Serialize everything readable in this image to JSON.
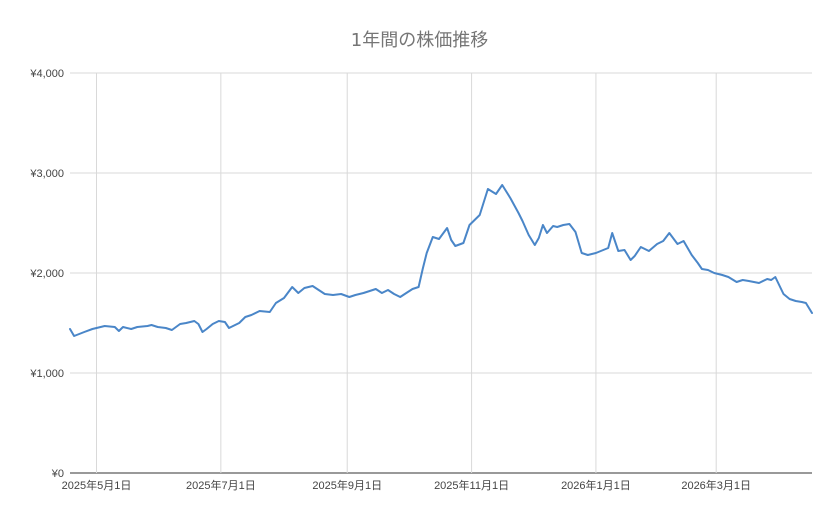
{
  "chart_data": {
    "type": "line",
    "title": "1年間の株価推移",
    "xlabel": "",
    "ylabel": "",
    "ylim": [
      0,
      4000
    ],
    "y_ticks": [
      0,
      1000,
      2000,
      3000,
      4000
    ],
    "y_tick_labels": [
      "¥0",
      "¥1,000",
      "¥2,000",
      "¥3,000",
      "¥4,000"
    ],
    "x_range": [
      "2025-04-18",
      "2026-04-17"
    ],
    "x_ticks": [
      "2025-05-01",
      "2025-07-01",
      "2025-09-01",
      "2025-11-01",
      "2026-01-01",
      "2026-03-01"
    ],
    "x_tick_labels": [
      "2025年5月1日",
      "2025年7月1日",
      "2025年9月1日",
      "2025年11月1日",
      "2026年1月1日",
      "2026年3月1日"
    ],
    "grid": true,
    "series_color": "#4a86c8",
    "x": [
      "2025-04-18",
      "2025-04-20",
      "2025-04-25",
      "2025-04-29",
      "2025-05-05",
      "2025-05-10",
      "2025-05-12",
      "2025-05-14",
      "2025-05-18",
      "2025-05-21",
      "2025-05-26",
      "2025-05-28",
      "2025-05-31",
      "2025-06-04",
      "2025-06-07",
      "2025-06-11",
      "2025-06-14",
      "2025-06-18",
      "2025-06-20",
      "2025-06-22",
      "2025-06-24",
      "2025-06-27",
      "2025-06-30",
      "2025-07-03",
      "2025-07-05",
      "2025-07-08",
      "2025-07-10",
      "2025-07-13",
      "2025-07-16",
      "2025-07-20",
      "2025-07-25",
      "2025-07-28",
      "2025-08-01",
      "2025-08-05",
      "2025-08-08",
      "2025-08-11",
      "2025-08-15",
      "2025-08-18",
      "2025-08-21",
      "2025-08-25",
      "2025-08-29",
      "2025-09-02",
      "2025-09-05",
      "2025-09-09",
      "2025-09-12",
      "2025-09-15",
      "2025-09-18",
      "2025-09-21",
      "2025-09-24",
      "2025-09-27",
      "2025-09-30",
      "2025-10-03",
      "2025-10-06",
      "2025-10-08",
      "2025-10-10",
      "2025-10-13",
      "2025-10-16",
      "2025-10-20",
      "2025-10-22",
      "2025-10-24",
      "2025-10-28",
      "2025-10-31",
      "2025-11-05",
      "2025-11-09",
      "2025-11-13",
      "2025-11-16",
      "2025-11-20",
      "2025-11-24",
      "2025-11-26",
      "2025-11-29",
      "2025-12-02",
      "2025-12-04",
      "2025-12-06",
      "2025-12-08",
      "2025-12-11",
      "2025-12-13",
      "2025-12-16",
      "2025-12-19",
      "2025-12-22",
      "2025-12-25",
      "2025-12-28",
      "2026-01-01",
      "2026-01-07",
      "2026-01-09",
      "2026-01-12",
      "2026-01-15",
      "2026-01-18",
      "2026-01-20",
      "2026-01-23",
      "2026-01-27",
      "2026-01-31",
      "2026-02-03",
      "2026-02-06",
      "2026-02-10",
      "2026-02-13",
      "2026-02-17",
      "2026-02-20",
      "2026-02-22",
      "2026-02-25",
      "2026-02-28",
      "2026-03-04",
      "2026-03-07",
      "2026-03-11",
      "2026-03-14",
      "2026-03-17",
      "2026-03-22",
      "2026-03-26",
      "2026-03-28",
      "2026-03-30",
      "2026-04-03",
      "2026-04-06",
      "2026-04-09",
      "2026-04-12",
      "2026-04-14",
      "2026-04-17"
    ],
    "values": [
      1440,
      1370,
      1410,
      1440,
      1470,
      1460,
      1420,
      1460,
      1440,
      1460,
      1470,
      1480,
      1460,
      1450,
      1430,
      1490,
      1500,
      1520,
      1490,
      1410,
      1440,
      1490,
      1520,
      1510,
      1450,
      1480,
      1500,
      1560,
      1580,
      1620,
      1610,
      1700,
      1750,
      1860,
      1800,
      1850,
      1870,
      1830,
      1790,
      1780,
      1790,
      1760,
      1780,
      1800,
      1820,
      1840,
      1800,
      1830,
      1790,
      1760,
      1800,
      1840,
      1860,
      2040,
      2200,
      2360,
      2340,
      2450,
      2330,
      2270,
      2300,
      2480,
      2580,
      2840,
      2790,
      2880,
      2750,
      2600,
      2520,
      2380,
      2280,
      2350,
      2480,
      2400,
      2470,
      2460,
      2480,
      2490,
      2410,
      2200,
      2180,
      2200,
      2250,
      2400,
      2220,
      2230,
      2130,
      2170,
      2260,
      2220,
      2290,
      2320,
      2400,
      2290,
      2320,
      2180,
      2100,
      2040,
      2030,
      2000,
      1980,
      1960,
      1910,
      1930,
      1920,
      1900,
      1940,
      1930,
      1960,
      1790,
      1740,
      1720,
      1710,
      1700,
      1600
    ]
  }
}
